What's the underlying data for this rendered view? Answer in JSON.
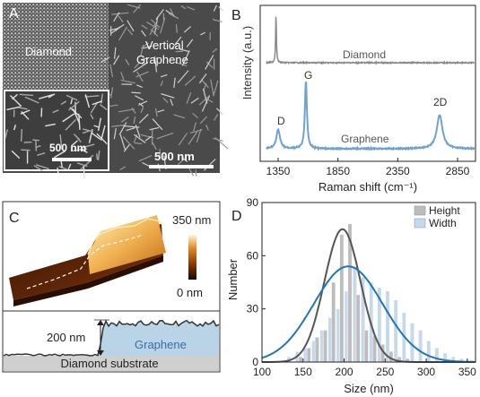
{
  "panels": {
    "a": {
      "letter": "A",
      "label_diamond": "Diamond",
      "label_vg_line1": "Vertical",
      "label_vg_line2": "Graphene",
      "scalebar_inset": "500 nm",
      "scalebar_main": "500 nm"
    },
    "b": {
      "letter": "B",
      "ylabel": "Intensity (a.u.)",
      "xlabel": "Raman shift (cm⁻¹)",
      "series_top": "Diamond",
      "series_bottom": "Graphene",
      "peak_d": "D",
      "peak_g": "G",
      "peak_2d": "2D",
      "xticks": [
        "1350",
        "1850",
        "2350",
        "2850"
      ],
      "colors": {
        "diamond": "#8a8a8a",
        "graphene": "#6fa3cf"
      }
    },
    "c": {
      "letter": "C",
      "colorbar_max": "350 nm",
      "colorbar_min": "0 nm",
      "step_height": "200 nm",
      "label_graphene": "Graphene",
      "label_substrate": "Diamond substrate"
    },
    "d": {
      "letter": "D",
      "legend_height": "Height",
      "legend_width": "Width",
      "colors": {
        "height_bar": "#bdbdbd",
        "width_bar": "#c6d8ec",
        "height_fit": "#555555",
        "width_fit": "#1f77b4"
      }
    }
  },
  "chart_data": [
    {
      "type": "line",
      "panel": "B",
      "xlabel": "Raman shift (cm⁻¹)",
      "ylabel": "Intensity (a.u.)",
      "xlim": [
        1200,
        3000
      ],
      "xticks": [
        1350,
        1850,
        2350,
        2850
      ],
      "series": [
        {
          "name": "Diamond",
          "peaks": [
            {
              "x": 1332,
              "rel_height": 1.0
            }
          ]
        },
        {
          "name": "Graphene",
          "peaks": [
            {
              "x": 1350,
              "label": "D",
              "rel_height": 0.28
            },
            {
              "x": 1582,
              "label": "G",
              "rel_height": 1.0
            },
            {
              "x": 2700,
              "label": "2D",
              "rel_height": 0.5
            }
          ]
        }
      ]
    },
    {
      "type": "bar",
      "panel": "D",
      "xlabel": "Size (nm)",
      "ylabel": "Number",
      "xlim": [
        100,
        360
      ],
      "ylim": [
        0,
        90
      ],
      "xticks": [
        100,
        150,
        200,
        250,
        300,
        350
      ],
      "yticks": [
        0,
        30,
        60,
        90
      ],
      "bin_width": 10,
      "series": [
        {
          "name": "Height",
          "x": [
            130,
            140,
            150,
            160,
            170,
            180,
            190,
            200,
            210,
            220,
            230,
            240,
            250,
            260,
            270,
            280,
            290,
            300,
            310
          ],
          "values": [
            0,
            0,
            3,
            8,
            14,
            18,
            45,
            72,
            78,
            38,
            18,
            15,
            10,
            6,
            3,
            2,
            0,
            0,
            0
          ]
        },
        {
          "name": "Width",
          "x": [
            130,
            140,
            150,
            160,
            170,
            180,
            190,
            200,
            210,
            220,
            230,
            240,
            250,
            260,
            270,
            280,
            290,
            300,
            310,
            320,
            330,
            340
          ],
          "values": [
            3,
            6,
            8,
            12,
            18,
            25,
            30,
            40,
            54,
            48,
            45,
            42,
            40,
            35,
            28,
            22,
            18,
            12,
            8,
            5,
            3,
            2
          ]
        }
      ],
      "fits": [
        {
          "name": "Height",
          "mean": 198,
          "sd": 22,
          "peak": 75
        },
        {
          "name": "Width",
          "mean": 205,
          "sd": 42,
          "peak": 54
        }
      ]
    }
  ]
}
